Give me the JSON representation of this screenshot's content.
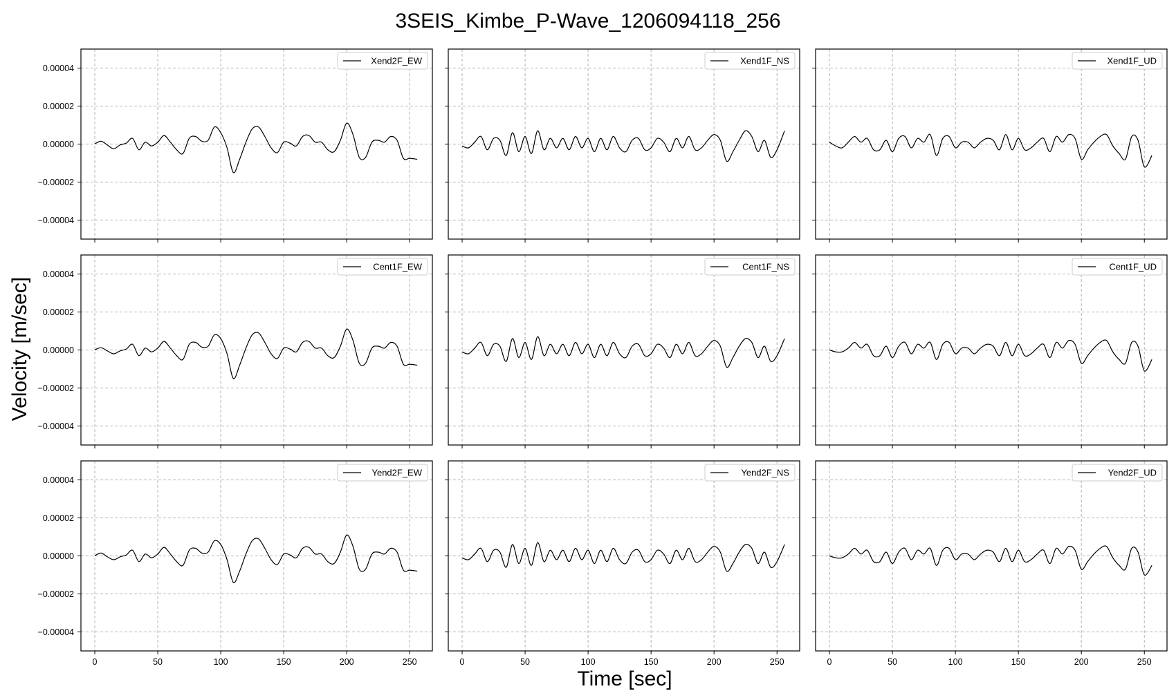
{
  "chart_data": {
    "type": "line",
    "title": "3SEIS_Kimbe_P-Wave_1206094118_256",
    "xlabel": "Time [sec]",
    "ylabel": "Velocity [m/sec]",
    "layout": "3x3 grid, shared axes",
    "xlim": [
      -11,
      268
    ],
    "ylim": [
      -5e-05,
      5e-05
    ],
    "xticks": [
      0,
      50,
      100,
      150,
      200,
      250
    ],
    "xtick_labels": [
      "0",
      "50",
      "100",
      "150",
      "200",
      "250"
    ],
    "yticks": [
      4e-05,
      2e-05,
      0.0,
      -2e-05,
      -4e-05
    ],
    "ytick_labels": [
      "0.00004",
      "0.00002",
      "0.00000",
      "−0.00002",
      "−0.00004"
    ],
    "grid": true,
    "legend_position": "top-right",
    "line_color": "#000000",
    "series": [
      {
        "name": "Xend2F_EW",
        "x": [
          0,
          5,
          10,
          15,
          20,
          25,
          30,
          35,
          40,
          45,
          50,
          55,
          60,
          65,
          70,
          75,
          80,
          85,
          90,
          95,
          100,
          105,
          110,
          115,
          120,
          125,
          130,
          135,
          140,
          145,
          150,
          155,
          160,
          165,
          170,
          175,
          180,
          185,
          190,
          195,
          200,
          205,
          210,
          215,
          220,
          225,
          230,
          235,
          240,
          245,
          250,
          256
        ],
        "y": [
          1e-07,
          1.5e-06,
          -5e-07,
          -2.5e-06,
          -5e-07,
          5e-07,
          3e-06,
          -3e-06,
          1e-06,
          -1e-06,
          1e-06,
          4.5e-06,
          1e-06,
          -3e-06,
          -5e-06,
          3e-06,
          4e-06,
          1.5e-06,
          2e-06,
          9e-06,
          6e-06,
          -2e-06,
          -1.5e-05,
          -8e-06,
          1e-06,
          8e-06,
          9e-06,
          4e-06,
          -2e-06,
          -4.5e-06,
          1e-06,
          5e-07,
          -1e-06,
          4e-06,
          4.5e-06,
          1e-06,
          1e-06,
          -3e-06,
          -4e-06,
          2e-06,
          1.1e-05,
          5e-06,
          -7e-06,
          -7e-06,
          1e-06,
          2e-06,
          1e-06,
          4e-06,
          2e-06,
          -7.5e-06,
          -7.5e-06,
          -8e-06
        ]
      },
      {
        "name": "Xend1F_NS",
        "x": [
          0,
          5,
          10,
          15,
          20,
          25,
          30,
          35,
          40,
          45,
          50,
          55,
          60,
          65,
          70,
          75,
          80,
          85,
          90,
          95,
          100,
          105,
          110,
          115,
          120,
          125,
          130,
          135,
          140,
          145,
          150,
          155,
          160,
          165,
          170,
          175,
          180,
          185,
          190,
          195,
          200,
          205,
          210,
          215,
          220,
          225,
          230,
          235,
          240,
          245,
          250,
          256
        ],
        "y": [
          -1e-06,
          -2e-06,
          1e-06,
          4e-06,
          -3e-06,
          3e-06,
          2e-06,
          -6e-06,
          6e-06,
          -4e-06,
          4e-06,
          -5e-06,
          7e-06,
          -3e-06,
          3e-06,
          -2e-06,
          3e-06,
          -3e-06,
          4e-06,
          -2e-06,
          3e-06,
          -4e-06,
          3e-06,
          -3e-06,
          4e-06,
          -2e-06,
          -4e-06,
          2e-06,
          3e-06,
          -3e-06,
          -2e-06,
          3e-06,
          1e-06,
          -4e-06,
          3e-06,
          -2e-06,
          4e-06,
          -3e-06,
          -2e-06,
          2e-06,
          5e-06,
          2e-06,
          -9e-06,
          -4e-06,
          2e-06,
          7e-06,
          4e-06,
          -4e-06,
          2e-06,
          -7e-06,
          -3e-06,
          7e-06
        ]
      },
      {
        "name": "Xend1F_UD",
        "x": [
          0,
          5,
          10,
          15,
          20,
          25,
          30,
          35,
          40,
          45,
          50,
          55,
          60,
          65,
          70,
          75,
          80,
          85,
          90,
          95,
          100,
          105,
          110,
          115,
          120,
          125,
          130,
          135,
          140,
          145,
          150,
          155,
          160,
          165,
          170,
          175,
          180,
          185,
          190,
          195,
          200,
          205,
          210,
          215,
          220,
          225,
          230,
          235,
          240,
          245,
          250,
          256
        ],
        "y": [
          1e-06,
          -1e-06,
          -2e-06,
          1e-06,
          4e-06,
          1e-06,
          3e-06,
          -3e-06,
          -3e-06,
          2e-06,
          -4e-06,
          3e-06,
          4e-06,
          -2e-06,
          3e-06,
          1e-06,
          5e-06,
          -6e-06,
          3e-06,
          4e-06,
          -2e-06,
          1e-06,
          1e-06,
          -2e-06,
          1e-06,
          3e-06,
          2e-06,
          -3e-06,
          5e-06,
          -3e-06,
          3e-06,
          -3e-06,
          -2e-06,
          1e-06,
          3e-06,
          -4e-06,
          4e-06,
          1e-06,
          5e-06,
          3e-06,
          -8e-06,
          -3e-06,
          1e-06,
          4e-06,
          5e-06,
          -1e-06,
          -5e-06,
          -8e-06,
          4e-06,
          2e-06,
          -1.2e-05,
          -6e-06
        ]
      },
      {
        "name": "Cent1F_EW",
        "x": [
          0,
          5,
          10,
          15,
          20,
          25,
          30,
          35,
          40,
          45,
          50,
          55,
          60,
          65,
          70,
          75,
          80,
          85,
          90,
          95,
          100,
          105,
          110,
          115,
          120,
          125,
          130,
          135,
          140,
          145,
          150,
          155,
          160,
          165,
          170,
          175,
          180,
          185,
          190,
          195,
          200,
          205,
          210,
          215,
          220,
          225,
          230,
          235,
          240,
          245,
          250,
          256
        ],
        "y": [
          1e-07,
          1.2e-06,
          -5e-07,
          -2e-06,
          -5e-07,
          5e-07,
          3e-06,
          -3e-06,
          1e-06,
          -1e-06,
          1e-06,
          4.5e-06,
          1e-06,
          -3e-06,
          -5e-06,
          3e-06,
          4e-06,
          1.5e-06,
          2e-06,
          8e-06,
          6e-06,
          -2e-06,
          -1.5e-05,
          -8e-06,
          1e-06,
          8e-06,
          9e-06,
          4e-06,
          -2e-06,
          -4.5e-06,
          1e-06,
          5e-07,
          -1e-06,
          4e-06,
          4.5e-06,
          1e-06,
          1e-06,
          -3e-06,
          -4e-06,
          2e-06,
          1.1e-05,
          5e-06,
          -7e-06,
          -7e-06,
          1e-06,
          2e-06,
          1e-06,
          4e-06,
          2e-06,
          -7.5e-06,
          -7.5e-06,
          -8e-06
        ]
      },
      {
        "name": "Cent1F_NS",
        "x": [
          0,
          5,
          10,
          15,
          20,
          25,
          30,
          35,
          40,
          45,
          50,
          55,
          60,
          65,
          70,
          75,
          80,
          85,
          90,
          95,
          100,
          105,
          110,
          115,
          120,
          125,
          130,
          135,
          140,
          145,
          150,
          155,
          160,
          165,
          170,
          175,
          180,
          185,
          190,
          195,
          200,
          205,
          210,
          215,
          220,
          225,
          230,
          235,
          240,
          245,
          250,
          256
        ],
        "y": [
          -1e-06,
          -2e-06,
          1e-06,
          4e-06,
          -3e-06,
          3e-06,
          2e-06,
          -6e-06,
          6e-06,
          -4e-06,
          4e-06,
          -5e-06,
          7e-06,
          -3e-06,
          3e-06,
          -2e-06,
          3e-06,
          -3e-06,
          4e-06,
          -2e-06,
          3e-06,
          -4e-06,
          3e-06,
          -3e-06,
          4e-06,
          -2e-06,
          -4e-06,
          2e-06,
          3e-06,
          -3e-06,
          -2e-06,
          3e-06,
          1e-06,
          -4e-06,
          3e-06,
          -2e-06,
          4e-06,
          -3e-06,
          -2e-06,
          2e-06,
          5e-06,
          2e-06,
          -9e-06,
          -4e-06,
          2e-06,
          6e-06,
          4e-06,
          -4e-06,
          2e-06,
          -6e-06,
          -3e-06,
          6e-06
        ]
      },
      {
        "name": "Cent1F_UD",
        "x": [
          0,
          5,
          10,
          15,
          20,
          25,
          30,
          35,
          40,
          45,
          50,
          55,
          60,
          65,
          70,
          75,
          80,
          85,
          90,
          95,
          100,
          105,
          110,
          115,
          120,
          125,
          130,
          135,
          140,
          145,
          150,
          155,
          160,
          165,
          170,
          175,
          180,
          185,
          190,
          195,
          200,
          205,
          210,
          215,
          220,
          225,
          230,
          235,
          240,
          245,
          250,
          256
        ],
        "y": [
          0.0,
          -1e-06,
          -1e-06,
          1e-06,
          4e-06,
          1e-06,
          3e-06,
          -3e-06,
          -3e-06,
          2e-06,
          -4e-06,
          2e-06,
          4e-06,
          -2e-06,
          3e-06,
          1e-06,
          4e-06,
          -5e-06,
          3e-06,
          4e-06,
          -2e-06,
          1e-06,
          1e-06,
          -2e-06,
          1e-06,
          3e-06,
          2e-06,
          -3e-06,
          4e-06,
          -3e-06,
          3e-06,
          -3e-06,
          -2e-06,
          1e-06,
          3e-06,
          -4e-06,
          4e-06,
          1e-06,
          5e-06,
          3e-06,
          -7e-06,
          -3e-06,
          1e-06,
          4e-06,
          5e-06,
          -1e-06,
          -5e-06,
          -7e-06,
          4e-06,
          2e-06,
          -1.1e-05,
          -5e-06
        ]
      },
      {
        "name": "Yend2F_EW",
        "x": [
          0,
          5,
          10,
          15,
          20,
          25,
          30,
          35,
          40,
          45,
          50,
          55,
          60,
          65,
          70,
          75,
          80,
          85,
          90,
          95,
          100,
          105,
          110,
          115,
          120,
          125,
          130,
          135,
          140,
          145,
          150,
          155,
          160,
          165,
          170,
          175,
          180,
          185,
          190,
          195,
          200,
          205,
          210,
          215,
          220,
          225,
          230,
          235,
          240,
          245,
          250,
          256
        ],
        "y": [
          1e-07,
          1.5e-06,
          -5e-07,
          -2e-06,
          -5e-07,
          5e-07,
          3e-06,
          -3e-06,
          1e-06,
          -1e-06,
          1e-06,
          4.5e-06,
          1e-06,
          -3e-06,
          -5e-06,
          3e-06,
          4e-06,
          1.5e-06,
          2e-06,
          8e-06,
          6e-06,
          -2e-06,
          -1.4e-05,
          -8e-06,
          1e-06,
          8e-06,
          9e-06,
          4e-06,
          -2e-06,
          -4.5e-06,
          1e-06,
          5e-07,
          -1e-06,
          4e-06,
          4.5e-06,
          1e-06,
          1e-06,
          -3e-06,
          -4e-06,
          2e-06,
          1.1e-05,
          5e-06,
          -7e-06,
          -7e-06,
          1e-06,
          2e-06,
          1e-06,
          4e-06,
          2e-06,
          -7.5e-06,
          -7.5e-06,
          -8e-06
        ]
      },
      {
        "name": "Yend2F_NS",
        "x": [
          0,
          5,
          10,
          15,
          20,
          25,
          30,
          35,
          40,
          45,
          50,
          55,
          60,
          65,
          70,
          75,
          80,
          85,
          90,
          95,
          100,
          105,
          110,
          115,
          120,
          125,
          130,
          135,
          140,
          145,
          150,
          155,
          160,
          165,
          170,
          175,
          180,
          185,
          190,
          195,
          200,
          205,
          210,
          215,
          220,
          225,
          230,
          235,
          240,
          245,
          250,
          256
        ],
        "y": [
          -1e-06,
          -2e-06,
          1e-06,
          4e-06,
          -3e-06,
          3e-06,
          2e-06,
          -6e-06,
          6e-06,
          -4e-06,
          4e-06,
          -5e-06,
          7e-06,
          -3e-06,
          3e-06,
          -2e-06,
          3e-06,
          -3e-06,
          4e-06,
          -2e-06,
          3e-06,
          -4e-06,
          3e-06,
          -3e-06,
          4e-06,
          -2e-06,
          -4e-06,
          2e-06,
          3e-06,
          -3e-06,
          -2e-06,
          3e-06,
          1e-06,
          -4e-06,
          3e-06,
          -2e-06,
          4e-06,
          -3e-06,
          -2e-06,
          2e-06,
          5e-06,
          2e-06,
          -8e-06,
          -4e-06,
          2e-06,
          6e-06,
          4e-06,
          -4e-06,
          2e-06,
          -6e-06,
          -3e-06,
          6e-06
        ]
      },
      {
        "name": "Yend2F_UD",
        "x": [
          0,
          5,
          10,
          15,
          20,
          25,
          30,
          35,
          40,
          45,
          50,
          55,
          60,
          65,
          70,
          75,
          80,
          85,
          90,
          95,
          100,
          105,
          110,
          115,
          120,
          125,
          130,
          135,
          140,
          145,
          150,
          155,
          160,
          165,
          170,
          175,
          180,
          185,
          190,
          195,
          200,
          205,
          210,
          215,
          220,
          225,
          230,
          235,
          240,
          245,
          250,
          256
        ],
        "y": [
          0.0,
          -1e-06,
          -1e-06,
          1e-06,
          4e-06,
          1e-06,
          3e-06,
          -3e-06,
          -3e-06,
          2e-06,
          -4e-06,
          2e-06,
          4e-06,
          -2e-06,
          3e-06,
          1e-06,
          4e-06,
          -5e-06,
          3e-06,
          4e-06,
          -2e-06,
          1e-06,
          1e-06,
          -2e-06,
          1e-06,
          3e-06,
          2e-06,
          -3e-06,
          4e-06,
          -3e-06,
          3e-06,
          -3e-06,
          -2e-06,
          1e-06,
          3e-06,
          -4e-06,
          4e-06,
          1e-06,
          5e-06,
          3e-06,
          -7e-06,
          -3e-06,
          1e-06,
          4e-06,
          5e-06,
          -1e-06,
          -5e-06,
          -7e-06,
          4e-06,
          2e-06,
          -1e-05,
          -5e-06
        ]
      }
    ]
  }
}
